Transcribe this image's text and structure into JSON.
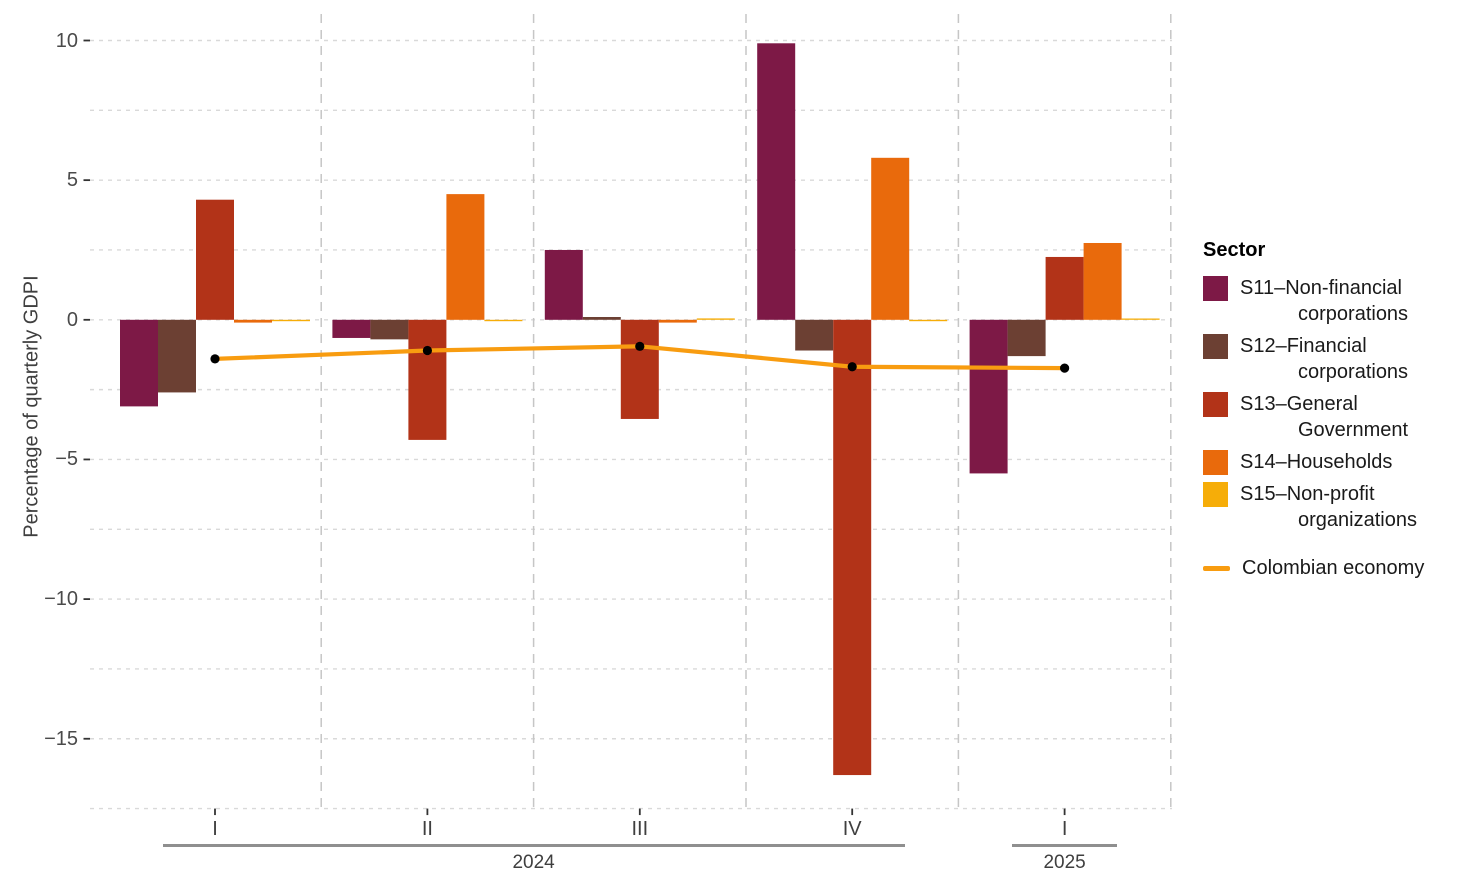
{
  "chart_data": {
    "type": "bar",
    "title": "",
    "ylabel": "Percentage of quarterly GDPI",
    "xlabel": "",
    "categories": [
      "I",
      "II",
      "III",
      "IV",
      "I"
    ],
    "years": [
      {
        "label": "2024",
        "from": 0,
        "to": 3
      },
      {
        "label": "2025",
        "from": 4,
        "to": 4
      }
    ],
    "y_ticks": [
      {
        "v": 10,
        "label": "10"
      },
      {
        "v": 5,
        "label": "5"
      },
      {
        "v": 0,
        "label": "0"
      },
      {
        "v": -5,
        "label": "−5"
      },
      {
        "v": -10,
        "label": "−10"
      },
      {
        "v": -15,
        "label": "−15"
      }
    ],
    "ylim": [
      10.96,
      -17.5
    ],
    "grid_step": 2.5,
    "grid": "dashed horizontal every 2.5, dashed vertical separators between quarters",
    "legend_title": "Sector",
    "legend_position": "right",
    "series": [
      {
        "id": "S11",
        "name": "S11–Non-financial corporations",
        "legend_lines": [
          "S11–Non-financial",
          "corporations"
        ],
        "color": "#7D1946",
        "values": [
          -3.1,
          -0.65,
          2.5,
          9.9,
          -5.5
        ]
      },
      {
        "id": "S12",
        "name": "S12–Financial corporations",
        "legend_lines": [
          "S12–Financial",
          "corporations"
        ],
        "color": "#6C4033",
        "values": [
          -2.6,
          -0.7,
          0.1,
          -1.1,
          -1.3
        ]
      },
      {
        "id": "S13",
        "name": "S13–General Government",
        "legend_lines": [
          "S13–General",
          "Government"
        ],
        "color": "#B23318",
        "values": [
          4.3,
          -4.3,
          -3.55,
          -16.3,
          2.25
        ]
      },
      {
        "id": "S14",
        "name": "S14–Households",
        "legend_lines": [
          "S14–Households"
        ],
        "color": "#E96A0C",
        "values": [
          -0.1,
          4.5,
          -0.1,
          5.8,
          2.75
        ]
      },
      {
        "id": "S15",
        "name": "S15–Non-profit organizations",
        "legend_lines": [
          "S15–Non-profit",
          "organizations"
        ],
        "color": "#F6AD08",
        "values": [
          -0.05,
          -0.05,
          0.05,
          -0.05,
          0.03
        ]
      }
    ],
    "line_series": {
      "name": "Colombian economy",
      "color": "#F89C10",
      "point_color": "#000000",
      "values": [
        -1.4,
        -1.1,
        -0.95,
        -1.68,
        -1.73
      ]
    }
  },
  "colors": {
    "grid_h": "#D9D9D9",
    "grid_v": "#C6C6C6",
    "axis_tick": "#333333",
    "tick_label": "#4A4A4A",
    "year_line": "#8F8F8F",
    "background": "#FFFFFF"
  }
}
